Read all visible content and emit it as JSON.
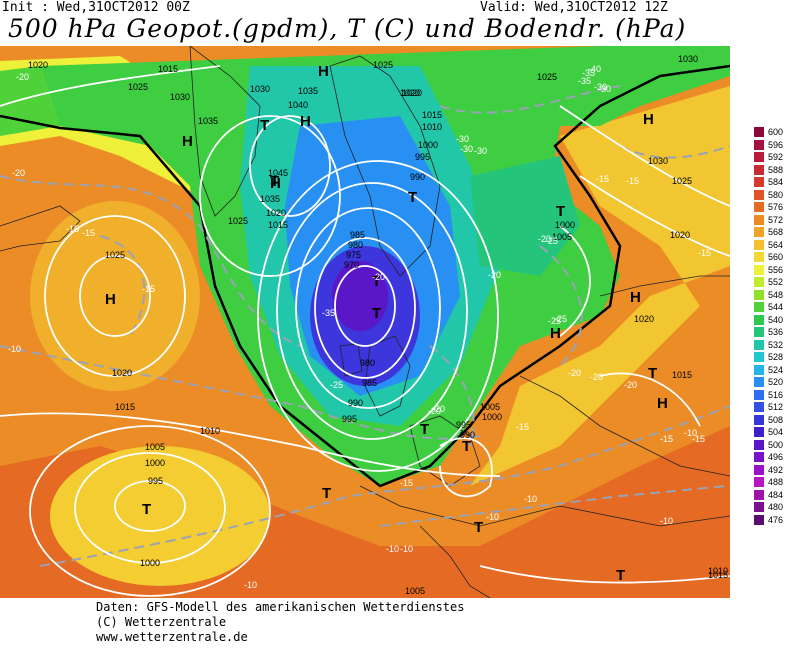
{
  "header": {
    "init": "Init : Wed,31OCT2012 00Z",
    "valid": "Valid: Wed,31OCT2012 12Z",
    "title": "500 hPa Geopot.(gpdm), T (C) und Bodendr. (hPa)"
  },
  "footer": {
    "line1": "Daten: GFS-Modell des amerikanischen Wetterdienstes",
    "line2": "(C) Wetterzentrale",
    "line3": "www.wetterzentrale.de"
  },
  "legend": {
    "values": [
      "600",
      "596",
      "592",
      "588",
      "584",
      "580",
      "576",
      "572",
      "568",
      "564",
      "560",
      "556",
      "552",
      "548",
      "544",
      "540",
      "536",
      "532",
      "528",
      "524",
      "520",
      "516",
      "512",
      "508",
      "504",
      "500",
      "496",
      "492",
      "488",
      "484",
      "480",
      "476"
    ],
    "colors": [
      "#8b0a3a",
      "#a3123f",
      "#b81c3c",
      "#c82a34",
      "#d63a2c",
      "#e05328",
      "#e56a24",
      "#ed8a26",
      "#f2a32a",
      "#f6bf2e",
      "#f3d835",
      "#eef03a",
      "#c2ea2e",
      "#8fe02a",
      "#4fd13a",
      "#2ec94c",
      "#24c57a",
      "#22c6a8",
      "#22c8cf",
      "#22b4ea",
      "#2890f2",
      "#2f6ef0",
      "#334fe6",
      "#3636d8",
      "#3d1fcc",
      "#5a16c7",
      "#7a12c8",
      "#9a12c8",
      "#b814c4",
      "#a012a8",
      "#7c1090",
      "#5a0c70"
    ]
  },
  "map": {
    "high_labels": [
      "H",
      "H",
      "H",
      "H",
      "H",
      "H",
      "H",
      "H",
      "H"
    ],
    "low_labels": [
      "T",
      "T",
      "T",
      "T",
      "T",
      "T",
      "T",
      "T",
      "T",
      "T",
      "T",
      "T",
      "T"
    ],
    "isobar_labels": [
      "1020",
      "1015",
      "1025",
      "1030",
      "1035",
      "1030",
      "1035",
      "1040",
      "1025",
      "1045",
      "1035",
      "1020",
      "1025",
      "1015",
      "1020",
      "1025",
      "1020",
      "1015",
      "1010",
      "1005",
      "1000",
      "995",
      "1000",
      "1005",
      "1000",
      "995",
      "990",
      "985",
      "980",
      "975",
      "970",
      "980",
      "985",
      "990",
      "995",
      "1010",
      "1015",
      "1020",
      "1000",
      "1005",
      "995",
      "990",
      "1020",
      "1025",
      "1015",
      "1030",
      "1000",
      "1005",
      "1010",
      "1020",
      "1015",
      "1025",
      "1030"
    ],
    "temp_labels": [
      "-20",
      "-15",
      "-10",
      "-15",
      "-20",
      "-25",
      "-30",
      "-35",
      "-30",
      "-25",
      "-20",
      "-15",
      "-10",
      "-15",
      "-10",
      "-35",
      "-30",
      "-20",
      "-25",
      "-20",
      "-15",
      "-10",
      "-20",
      "-15",
      "-10",
      "-20",
      "-15",
      "-10",
      "-10",
      "-35",
      "-40",
      "-30",
      "-15",
      "-20",
      "-15",
      "-10",
      "-20",
      "-15",
      "-30",
      "-25",
      "-20"
    ]
  }
}
